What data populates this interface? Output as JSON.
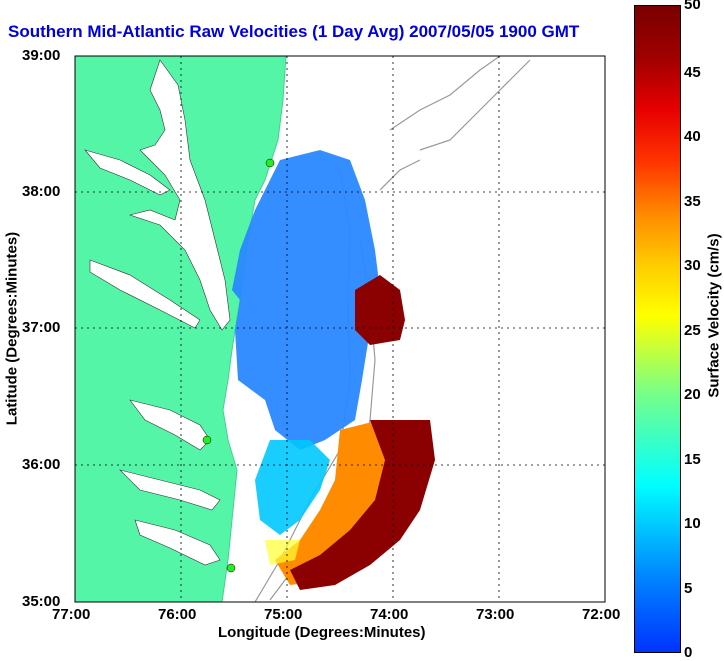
{
  "title": "Southern Mid-Atlantic Raw Velocities (1 Day Avg) 2007/05/05 1900 GMT",
  "x_axis": {
    "label": "Longitude (Degrees:Minutes)",
    "ticks": [
      "77:00",
      "76:00",
      "75:00",
      "74:00",
      "73:00",
      "72:00"
    ]
  },
  "y_axis": {
    "label": "Latitude (Degrees:Minutes)",
    "ticks": [
      "39:00",
      "38:00",
      "37:00",
      "36:00",
      "35:00"
    ]
  },
  "colorbar": {
    "label": "Surface Velocity (cm/s)",
    "ticks": [
      "50",
      "45",
      "40",
      "35",
      "30",
      "25",
      "20",
      "15",
      "10",
      "5",
      "0"
    ],
    "min": 0,
    "max": 50
  },
  "colors": {
    "land": "#55f5a8",
    "water": "#ffffff",
    "title": "#0000dd",
    "slow": "#1f6fff",
    "fast": "#8b0000"
  }
}
